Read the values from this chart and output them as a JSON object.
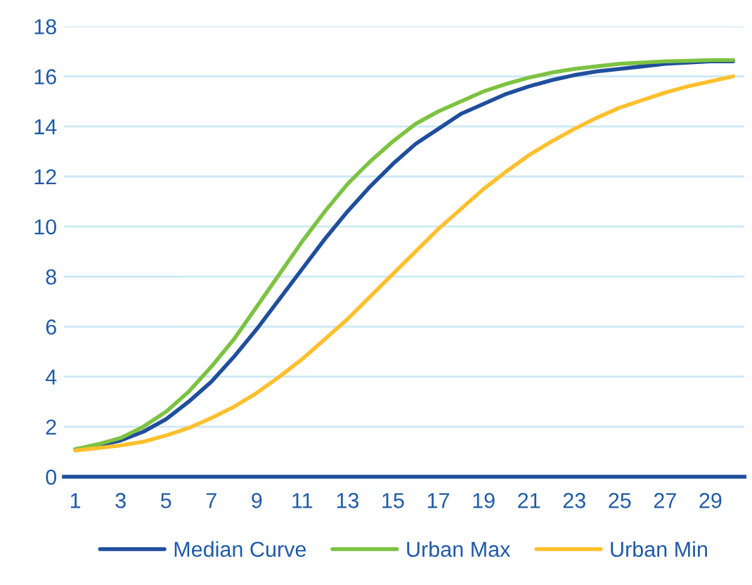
{
  "chart_data": {
    "type": "line",
    "categories": [
      "1",
      null,
      "3",
      null,
      "5",
      null,
      "7",
      null,
      "9",
      null,
      "11",
      null,
      "13",
      null,
      "15",
      null,
      "17",
      null,
      "19",
      null,
      "21",
      null,
      "23",
      null,
      "25",
      null,
      "27",
      null,
      "29",
      null
    ],
    "series": [
      {
        "name": "Median Curve",
        "color": "#1f4e9c",
        "values": [
          1.1,
          1.25,
          1.45,
          1.8,
          2.3,
          3.0,
          3.8,
          4.8,
          5.9,
          7.1,
          8.3,
          9.5,
          10.6,
          11.6,
          12.5,
          13.3,
          13.9,
          14.5,
          14.9,
          15.3,
          15.6,
          15.85,
          16.05,
          16.2,
          16.3,
          16.4,
          16.5,
          16.55,
          16.6,
          16.6
        ]
      },
      {
        "name": "Urban Max",
        "color": "#7dc242",
        "values": [
          1.1,
          1.3,
          1.55,
          2.0,
          2.6,
          3.4,
          4.4,
          5.5,
          6.8,
          8.1,
          9.4,
          10.6,
          11.7,
          12.6,
          13.4,
          14.1,
          14.6,
          15.0,
          15.4,
          15.7,
          15.95,
          16.15,
          16.3,
          16.4,
          16.5,
          16.55,
          16.6,
          16.62,
          16.65,
          16.65
        ]
      },
      {
        "name": "Urban Min",
        "color": "#ffc02e",
        "values": [
          1.05,
          1.15,
          1.25,
          1.4,
          1.65,
          1.95,
          2.35,
          2.8,
          3.35,
          4.0,
          4.7,
          5.5,
          6.3,
          7.2,
          8.1,
          9.0,
          9.9,
          10.7,
          11.5,
          12.2,
          12.85,
          13.4,
          13.9,
          14.35,
          14.75,
          15.05,
          15.35,
          15.6,
          15.8,
          16.0
        ]
      }
    ],
    "ylim": [
      0,
      18
    ],
    "yticks": [
      0,
      2,
      4,
      6,
      8,
      10,
      12,
      14,
      16,
      18
    ],
    "grid": "y",
    "legend": "bottom",
    "marker": "none",
    "line_style": "solid"
  }
}
